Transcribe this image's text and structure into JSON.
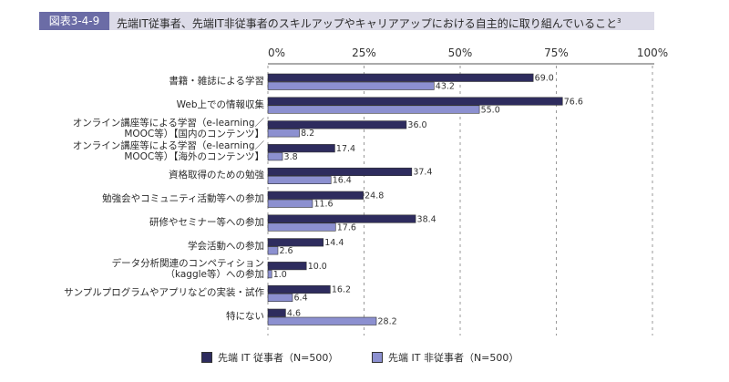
{
  "header": {
    "figure_label": "図表3-4-9",
    "title": "先端IT従事者、先端IT非従事者のスキルアップやキャリアアップにおける自主的に取り組んでいること",
    "footnote_mark": "3"
  },
  "colors": {
    "series1": "#2e2c5e",
    "series2": "#8c90d0",
    "label_bg": "#6b6ca6",
    "title_bg": "#dcdbe8"
  },
  "chart_data": {
    "type": "bar",
    "orientation": "horizontal",
    "title": "先端IT従事者、先端IT非従事者のスキルアップやキャリアアップにおける自主的に取り組んでいること",
    "xlabel": "",
    "ylabel": "",
    "xlim": [
      0,
      100
    ],
    "x_ticks": [
      "0%",
      "25%",
      "50%",
      "75%",
      "100%"
    ],
    "x_tick_values": [
      0,
      25,
      50,
      75,
      100
    ],
    "grid": "vertical dashed",
    "legend_position": "bottom",
    "categories": [
      [
        "書籍・雑誌による学習"
      ],
      [
        "Web上での情報収集"
      ],
      [
        "オンライン講座等による学習（e-learning／",
        "MOOC等）【国内のコンテンツ】"
      ],
      [
        "オンライン講座等による学習（e-learning／",
        "MOOC等）【海外のコンテンツ】"
      ],
      [
        "資格取得のための勉強"
      ],
      [
        "勉強会やコミュニティ活動等への参加"
      ],
      [
        "研修やセミナー等への参加"
      ],
      [
        "学会活動への参加"
      ],
      [
        "データ分析関連のコンペティション",
        "（kaggle等）への参加"
      ],
      [
        "サンプルプログラムやアプリなどの実装・試作"
      ],
      [
        "特にない"
      ]
    ],
    "series": [
      {
        "name": "先端 IT 従事者（N=500）",
        "values": [
          69.0,
          76.6,
          36.0,
          17.4,
          37.4,
          24.8,
          38.4,
          14.4,
          10.0,
          16.2,
          4.6
        ]
      },
      {
        "name": "先端 IT 非従事者（N=500）",
        "values": [
          43.2,
          55.0,
          8.2,
          3.8,
          16.4,
          11.6,
          17.6,
          2.6,
          1.0,
          6.4,
          28.2
        ]
      }
    ]
  }
}
